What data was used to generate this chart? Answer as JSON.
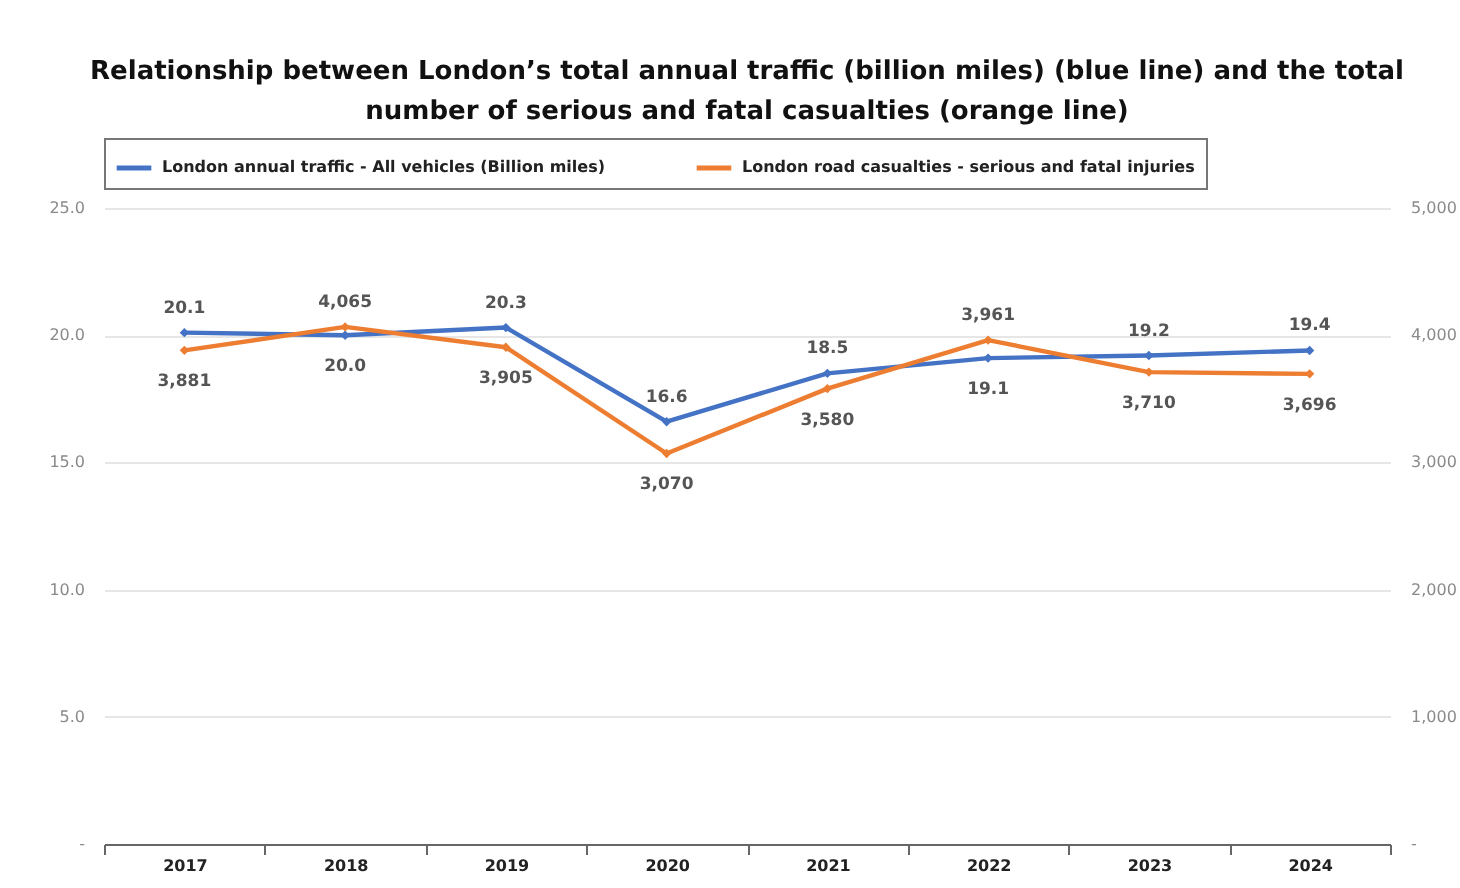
{
  "chart_data": {
    "type": "line",
    "title": "Relationship between London’s total annual traffic (billion miles) (blue line) and the total number of serious and fatal casualties (orange line)",
    "categories": [
      "2017",
      "2018",
      "2019",
      "2020",
      "2021",
      "2022",
      "2023",
      "2024"
    ],
    "series": [
      {
        "name": "London annual traffic - All vehicles (Billion miles)",
        "color": "#4472c4",
        "values": [
          20.1,
          20.0,
          20.3,
          16.6,
          18.5,
          19.1,
          19.2,
          19.4
        ],
        "value_labels": [
          "20.1",
          "20.0",
          "20.3",
          "16.6",
          "18.5",
          "19.1",
          "19.2",
          "19.4"
        ]
      },
      {
        "name": "London road casualties - serious and fatal injuries",
        "color": "#ed7d31",
        "axis": "y2",
        "values": [
          3881,
          4065,
          3905,
          3070,
          3580,
          3961,
          3710,
          3696
        ],
        "value_labels": [
          "3,881",
          "4,065",
          "3,905",
          "3,070",
          "3,580",
          "3,961",
          "3,710",
          "3,696"
        ]
      }
    ],
    "ylim": [
      0,
      25
    ],
    "yticks": [
      {
        "value": 0,
        "label": "-"
      },
      {
        "value": 5,
        "label": "5.0"
      },
      {
        "value": 10,
        "label": "10.0"
      },
      {
        "value": 15,
        "label": "15.0"
      },
      {
        "value": 20,
        "label": "20.0"
      },
      {
        "value": 25,
        "label": "25.0"
      }
    ],
    "y2lim": [
      0,
      5000
    ],
    "y2ticks": [
      {
        "value": 0,
        "label": "-"
      },
      {
        "value": 1000,
        "label": "1,000"
      },
      {
        "value": 2000,
        "label": "2,000"
      },
      {
        "value": 3000,
        "label": "3,000"
      },
      {
        "value": 4000,
        "label": "4,000"
      },
      {
        "value": 5000,
        "label": "5,000"
      }
    ],
    "grid": "y",
    "legend": "top",
    "marker": "diamond",
    "line_style": "solid"
  }
}
